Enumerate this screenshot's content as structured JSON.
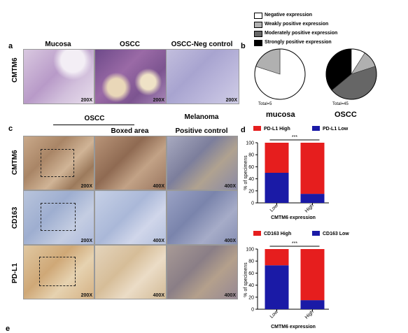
{
  "panel_labels": {
    "a": "a",
    "b": "b",
    "c": "c",
    "d": "d",
    "e": "e"
  },
  "panel_a": {
    "headers": [
      "Mucosa",
      "OSCC",
      "OSCC-Neg control"
    ],
    "row_label": "CMTM6",
    "mags": [
      "200X",
      "200X",
      "200X"
    ]
  },
  "panel_b": {
    "legend": [
      {
        "label": "Negative expression",
        "color": "#ffffff"
      },
      {
        "label": "Weakly positive expression",
        "color": "#b0b0b0"
      },
      {
        "label": "Moderately positive expression",
        "color": "#666666"
      },
      {
        "label": "Strongly positive expression",
        "color": "#000000"
      }
    ],
    "pies": [
      {
        "name": "mucosa",
        "total": "Total=5",
        "values": [
          0.8,
          0.2,
          0,
          0
        ]
      },
      {
        "name": "OSCC",
        "total": "Total=45",
        "values": [
          0.09,
          0.11,
          0.44,
          0.36
        ]
      }
    ]
  },
  "panel_c": {
    "group_header": "OSCC",
    "melanoma_header": "Melanoma",
    "col2_header": "Boxed area",
    "col3_header": "Positive control",
    "rows": [
      {
        "label": "CMTM6",
        "mags": [
          "200X",
          "400X",
          "400X"
        ]
      },
      {
        "label": "CD163",
        "mags": [
          "200X",
          "400X",
          "400X"
        ]
      },
      {
        "label": "PD-L1",
        "mags": [
          "200X",
          "400X",
          "400X"
        ]
      }
    ]
  },
  "chart_data": [
    {
      "type": "bar",
      "stacked": true,
      "categories": [
        "Low",
        "High"
      ],
      "series": [
        {
          "name": "PD-L1 Low",
          "values": [
            50,
            15
          ],
          "color": "#1a1aa6"
        },
        {
          "name": "PD-L1 High",
          "values": [
            50,
            85
          ],
          "color": "#e61e1e"
        }
      ],
      "xlabel": "CMTM6 expression",
      "ylabel": "% of specimens",
      "ylim": [
        0,
        100
      ],
      "yticks": [
        0,
        20,
        40,
        60,
        80,
        100
      ],
      "significance": "***",
      "legend_position": "top"
    },
    {
      "type": "bar",
      "stacked": true,
      "categories": [
        "Low",
        "High"
      ],
      "series": [
        {
          "name": "CD163 Low",
          "values": [
            73,
            15
          ],
          "color": "#1a1aa6"
        },
        {
          "name": "CD163 High",
          "values": [
            27,
            85
          ],
          "color": "#e61e1e"
        }
      ],
      "xlabel": "CMTM6 expression",
      "ylabel": "% of specimens",
      "ylim": [
        0,
        100
      ],
      "yticks": [
        0,
        20,
        40,
        60,
        80,
        100
      ],
      "significance": "***",
      "legend_position": "top"
    }
  ]
}
